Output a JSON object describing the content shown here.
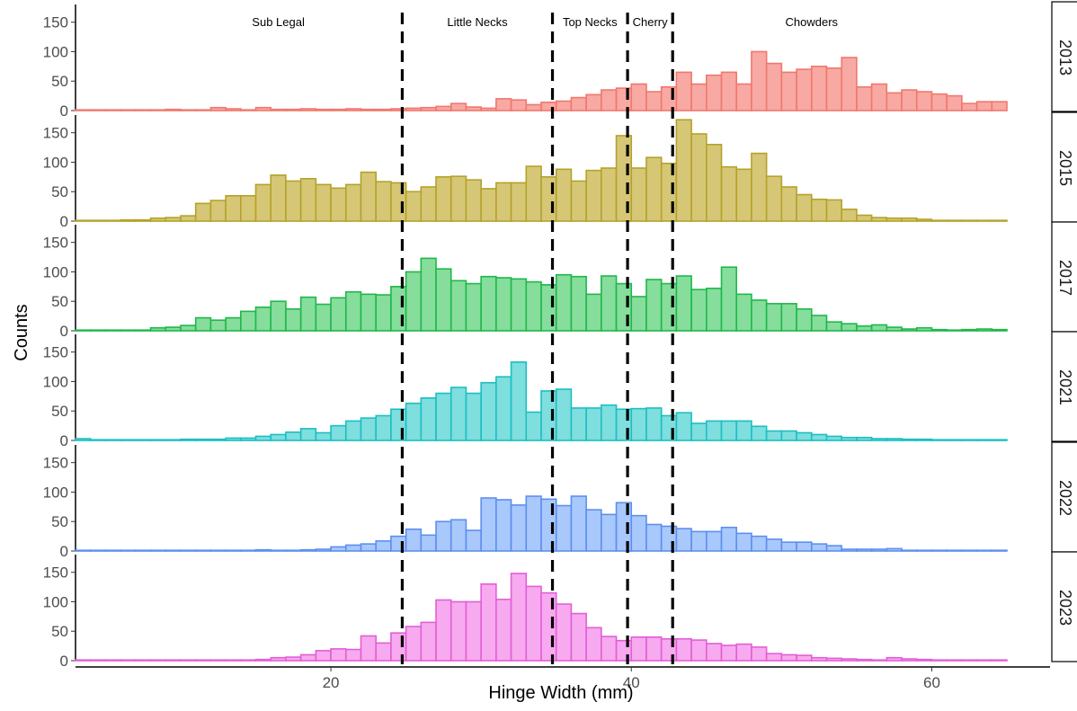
{
  "chart_data": {
    "type": "bar",
    "subtype": "faceted-histogram",
    "xlabel": "Hinge Width (mm)",
    "ylabel": "Counts",
    "xlim": [
      3,
      65
    ],
    "ylim": [
      0,
      180
    ],
    "x_ticks": [
      20,
      40,
      60
    ],
    "y_ticks": [
      0,
      50,
      100,
      150
    ],
    "bin_start": 3,
    "bin_width": 1,
    "grid": false,
    "legend": "none",
    "category_lines": [
      24.75,
      34.75,
      39.75,
      42.75
    ],
    "category_labels": [
      {
        "label": "Sub Legal",
        "x": 16.5
      },
      {
        "label": "Little Necks",
        "x": 29.75
      },
      {
        "label": "Top Necks",
        "x": 37.25
      },
      {
        "label": "Cherry",
        "x": 41.25
      },
      {
        "label": "Chowders",
        "x": 52
      }
    ],
    "series": [
      {
        "name": "2013",
        "fill": "#f8a9a3",
        "stroke": "#f0786d",
        "values": [
          0,
          0,
          0,
          0,
          0,
          0,
          2,
          1,
          1,
          5,
          3,
          1,
          5,
          2,
          2,
          3,
          2,
          2,
          3,
          2,
          2,
          3,
          4,
          5,
          7,
          12,
          6,
          4,
          20,
          18,
          10,
          14,
          16,
          22,
          27,
          35,
          38,
          45,
          32,
          40,
          65,
          45,
          60,
          65,
          45,
          100,
          80,
          65,
          70,
          75,
          72,
          90,
          40,
          45,
          30,
          35,
          32,
          28,
          25,
          12,
          15,
          15,
          12,
          8,
          5,
          4,
          3,
          3,
          2,
          1,
          2,
          2,
          2
        ]
      },
      {
        "name": "2015",
        "fill": "#d6c777",
        "stroke": "#b4a22a",
        "values": [
          0,
          0,
          1,
          2,
          2,
          5,
          6,
          9,
          30,
          35,
          43,
          43,
          62,
          78,
          68,
          72,
          62,
          56,
          62,
          83,
          67,
          65,
          50,
          58,
          75,
          76,
          70,
          55,
          65,
          65,
          93,
          75,
          88,
          68,
          86,
          90,
          145,
          90,
          108,
          98,
          172,
          148,
          130,
          92,
          88,
          115,
          76,
          58,
          45,
          37,
          36,
          20,
          10,
          6,
          5,
          5,
          3,
          1,
          1,
          0,
          0,
          0,
          0
        ]
      },
      {
        "name": "2017",
        "fill": "#86dd9c",
        "stroke": "#1fb84a",
        "values": [
          0,
          0,
          0,
          0,
          0,
          5,
          6,
          9,
          22,
          18,
          22,
          33,
          40,
          50,
          37,
          57,
          45,
          56,
          66,
          62,
          61,
          75,
          100,
          123,
          105,
          85,
          80,
          92,
          90,
          88,
          83,
          78,
          95,
          92,
          62,
          93,
          80,
          58,
          87,
          80,
          93,
          70,
          72,
          108,
          62,
          52,
          46,
          46,
          37,
          26,
          15,
          12,
          8,
          10,
          6,
          3,
          5,
          2,
          1,
          2,
          3,
          2,
          1
        ]
      },
      {
        "name": "2021",
        "fill": "#7fdede",
        "stroke": "#1cbfc2",
        "values": [
          3,
          0,
          0,
          0,
          0,
          0,
          0,
          2,
          2,
          2,
          4,
          4,
          7,
          10,
          14,
          20,
          13,
          25,
          33,
          38,
          42,
          53,
          63,
          72,
          80,
          90,
          80,
          98,
          108,
          133,
          48,
          84,
          87,
          55,
          55,
          60,
          53,
          54,
          55,
          42,
          47,
          29,
          33,
          33,
          33,
          24,
          16,
          16,
          13,
          10,
          7,
          5,
          5,
          3,
          3,
          2,
          2,
          1,
          1,
          1,
          1,
          0
        ]
      },
      {
        "name": "2022",
        "fill": "#a9c8fb",
        "stroke": "#5d8fef",
        "values": [
          0,
          0,
          0,
          0,
          0,
          0,
          0,
          0,
          0,
          0,
          0,
          1,
          2,
          1,
          1,
          2,
          3,
          7,
          10,
          12,
          17,
          25,
          37,
          27,
          50,
          53,
          35,
          90,
          87,
          78,
          93,
          88,
          77,
          93,
          70,
          62,
          82,
          60,
          45,
          42,
          38,
          33,
          33,
          40,
          30,
          25,
          20,
          15,
          15,
          12,
          9,
          3,
          3,
          3,
          4,
          0,
          0,
          0,
          0,
          0,
          0,
          0
        ]
      },
      {
        "name": "2023",
        "fill": "#f7aaef",
        "stroke": "#e25fd6",
        "values": [
          0,
          0,
          0,
          0,
          0,
          0,
          0,
          0,
          0,
          0,
          0,
          1,
          2,
          5,
          6,
          10,
          17,
          20,
          19,
          42,
          30,
          47,
          58,
          65,
          103,
          100,
          100,
          130,
          104,
          148,
          126,
          115,
          96,
          80,
          56,
          41,
          34,
          40,
          40,
          37,
          37,
          35,
          29,
          26,
          28,
          23,
          12,
          10,
          9,
          5,
          4,
          3,
          2,
          1,
          5,
          3,
          2,
          0,
          0,
          0,
          0,
          0
        ]
      }
    ]
  }
}
